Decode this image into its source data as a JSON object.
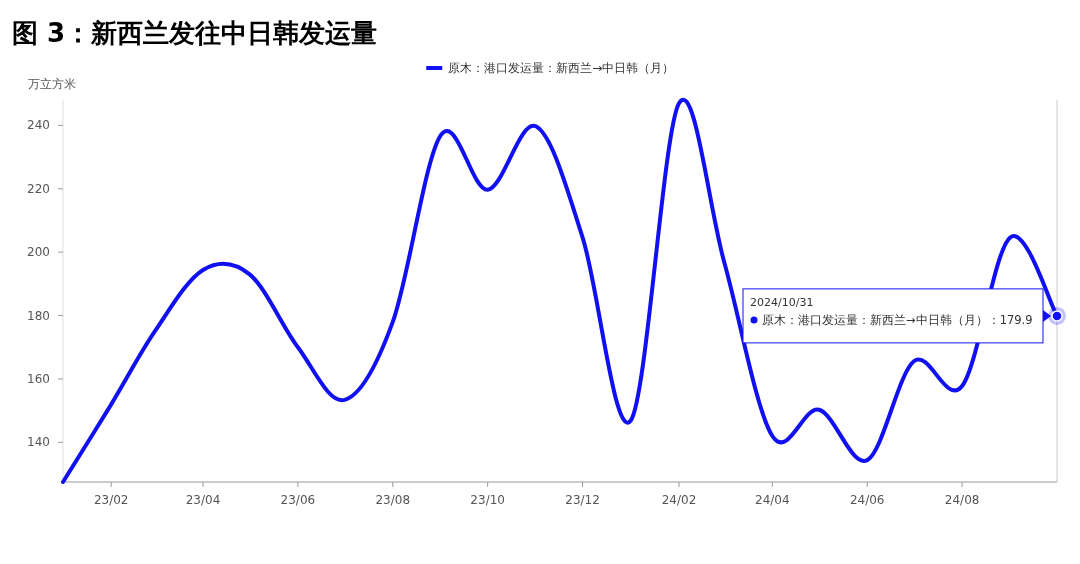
{
  "chart_data": {
    "type": "line",
    "title": "图 3：新西兰发往中日韩发运量",
    "ylabel": "万立方米",
    "x": [
      "2023-01",
      "2023-02",
      "2023-03",
      "2023-04",
      "2023-05",
      "2023-06",
      "2023-07",
      "2023-08",
      "2023-09",
      "2023-10",
      "2023-11",
      "2023-12",
      "2024-01",
      "2024-02",
      "2024-03",
      "2024-04",
      "2024-05",
      "2024-06",
      "2024-07",
      "2024-08",
      "2024-09",
      "2024-10"
    ],
    "series": [
      {
        "name": "原木：港口发运量：新西兰→中日韩（月）",
        "color": "#1010f0",
        "values": [
          127.5,
          152,
          175,
          194.4,
          193,
          170,
          153.4,
          178,
          237,
          219.7,
          239.7,
          204.7,
          146.9,
          247,
          197,
          142,
          150.3,
          134.4,
          165.6,
          157.8,
          204.7,
          179.9
        ]
      }
    ],
    "xlim": [
      "2023-01",
      "2024-10"
    ],
    "xticks": [
      {
        "value": "2023-02",
        "label": "23/02"
      },
      {
        "value": "2023-04",
        "label": "23/04"
      },
      {
        "value": "2023-06",
        "label": "23/06"
      },
      {
        "value": "2023-08",
        "label": "23/08"
      },
      {
        "value": "2023-10",
        "label": "23/10"
      },
      {
        "value": "2023-12",
        "label": "23/12"
      },
      {
        "value": "2024-02",
        "label": "24/02"
      },
      {
        "value": "2024-04",
        "label": "24/04"
      },
      {
        "value": "2024-06",
        "label": "24/06"
      },
      {
        "value": "2024-08",
        "label": "24/08"
      }
    ],
    "ylim": [
      127.5,
      248
    ],
    "yticks": [
      140,
      160,
      180,
      200,
      220,
      240
    ],
    "legend": "top",
    "grid": false,
    "marker": "none",
    "line_style": "solid",
    "annotations": [
      "2024/10/31",
      {
        "text": "原木：港口发运量：新西兰→中日韩（月）：179.9",
        "x": "2024-10",
        "y": 179.9
      }
    ]
  }
}
